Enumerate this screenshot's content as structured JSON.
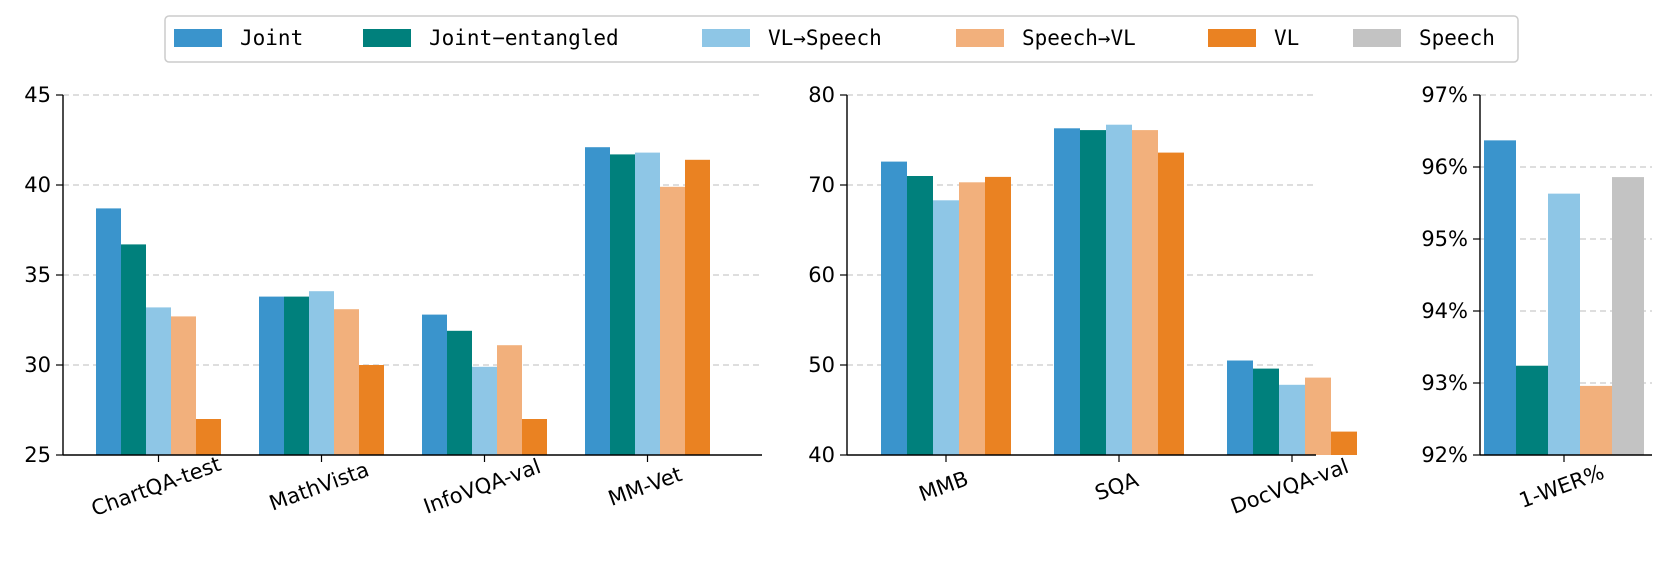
{
  "legend": {
    "entries": [
      {
        "key": "joint",
        "label": "Joint",
        "color": "#3a94cc"
      },
      {
        "key": "joint_entangled",
        "label": "Joint−entangled",
        "color": "#00807c"
      },
      {
        "key": "vl_speech",
        "label": "VL→Speech",
        "color": "#8ec6e6"
      },
      {
        "key": "speech_vl",
        "label": "Speech→VL",
        "color": "#f2b07c"
      },
      {
        "key": "vl",
        "label": "VL",
        "color": "#ea8222"
      },
      {
        "key": "speech",
        "label": "Speech",
        "color": "#c3c3c3"
      }
    ]
  },
  "chart_data": [
    {
      "type": "bar",
      "title": "",
      "xlabel": "",
      "ylabel": "",
      "ylim": [
        25,
        45
      ],
      "yticks": [
        25,
        30,
        35,
        40,
        45
      ],
      "ytick_labels": [
        "25",
        "30",
        "35",
        "40",
        "45"
      ],
      "grid": true,
      "categories": [
        "ChartQA-test",
        "MathVista",
        "InfoVQA-val",
        "MM-Vet"
      ],
      "series": [
        {
          "key": "joint",
          "name": "Joint",
          "values": [
            38.7,
            33.8,
            32.8,
            42.1
          ]
        },
        {
          "key": "joint_entangled",
          "name": "Joint−entangled",
          "values": [
            36.7,
            33.8,
            31.9,
            41.7
          ]
        },
        {
          "key": "vl_speech",
          "name": "VL→Speech",
          "values": [
            33.2,
            34.1,
            29.9,
            41.8
          ]
        },
        {
          "key": "speech_vl",
          "name": "Speech→VL",
          "values": [
            32.7,
            33.1,
            31.1,
            39.9
          ]
        },
        {
          "key": "vl",
          "name": "VL",
          "values": [
            27.0,
            30.0,
            27.0,
            41.4
          ]
        }
      ]
    },
    {
      "type": "bar",
      "title": "",
      "xlabel": "",
      "ylabel": "",
      "ylim": [
        40,
        80
      ],
      "yticks": [
        40,
        50,
        60,
        70,
        80
      ],
      "ytick_labels": [
        "40",
        "50",
        "60",
        "70",
        "80"
      ],
      "grid": true,
      "categories": [
        "MMB",
        "SQA",
        "DocVQA-val"
      ],
      "series": [
        {
          "key": "joint",
          "name": "Joint",
          "values": [
            72.6,
            76.3,
            50.5
          ]
        },
        {
          "key": "joint_entangled",
          "name": "Joint−entangled",
          "values": [
            71.0,
            76.1,
            49.6
          ]
        },
        {
          "key": "vl_speech",
          "name": "VL→Speech",
          "values": [
            68.3,
            76.7,
            47.8
          ]
        },
        {
          "key": "speech_vl",
          "name": "Speech→VL",
          "values": [
            70.3,
            76.1,
            48.6
          ]
        },
        {
          "key": "vl",
          "name": "VL",
          "values": [
            70.9,
            73.6,
            42.6
          ]
        }
      ]
    },
    {
      "type": "bar",
      "title": "",
      "xlabel": "",
      "ylabel": "",
      "ylim": [
        92,
        97
      ],
      "yticks": [
        92,
        93,
        94,
        95,
        96,
        97
      ],
      "ytick_labels": [
        "92%",
        "93%",
        "94%",
        "95%",
        "96%",
        "97%"
      ],
      "grid": true,
      "categories": [
        "1-WER%"
      ],
      "series": [
        {
          "key": "joint",
          "name": "Joint",
          "values": [
            96.37
          ]
        },
        {
          "key": "joint_entangled",
          "name": "Joint−entangled",
          "values": [
            93.24
          ]
        },
        {
          "key": "vl_speech",
          "name": "VL→Speech",
          "values": [
            95.63
          ]
        },
        {
          "key": "speech_vl",
          "name": "Speech→VL",
          "values": [
            92.96
          ]
        },
        {
          "key": "speech",
          "name": "Speech",
          "values": [
            95.86
          ]
        }
      ]
    }
  ]
}
